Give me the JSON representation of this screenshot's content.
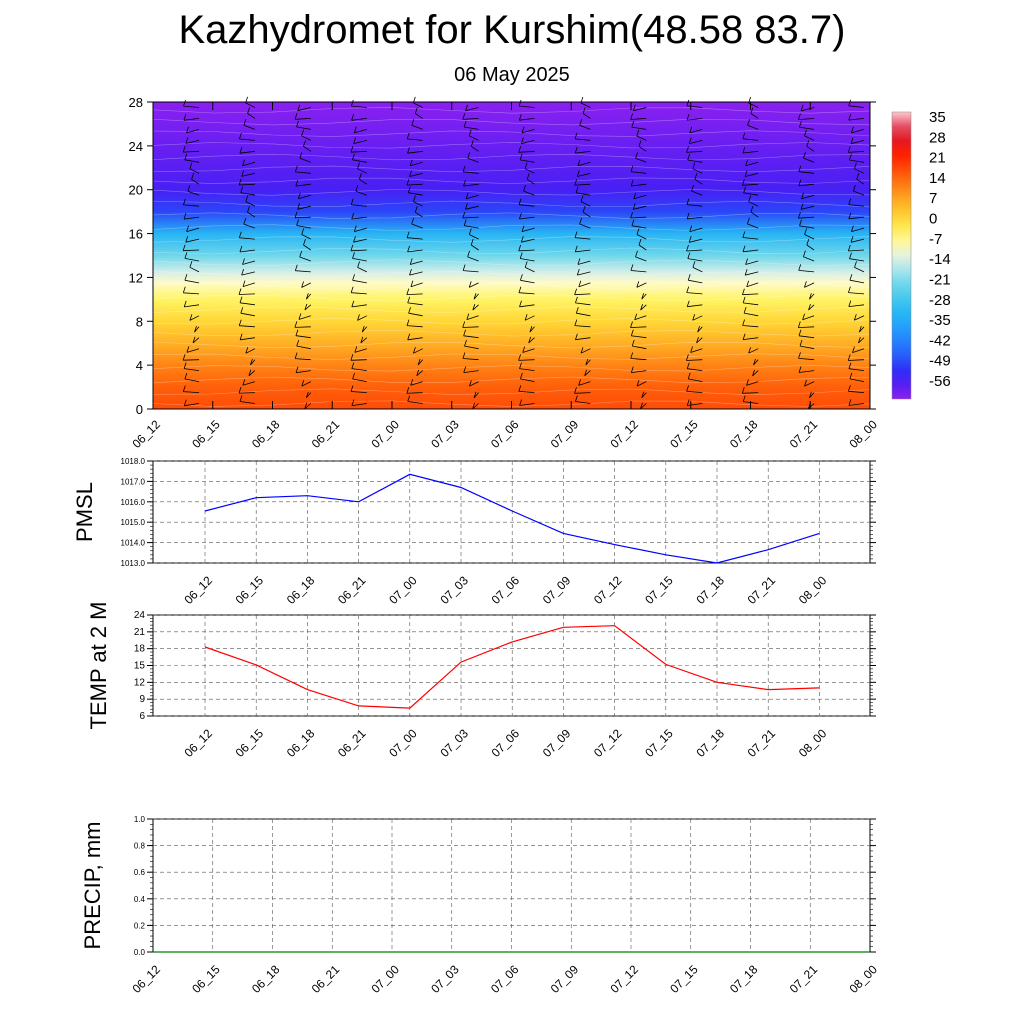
{
  "title": "Kazhydromet for Kurshim(48.58 83.7)",
  "subtitle": "06 May 2025",
  "chart_data": [
    {
      "type": "heatmap",
      "description_of_panel": "vertical cross-section",
      "x_labels": [
        "06_12",
        "06_15",
        "06_18",
        "06_21",
        "07_00",
        "07_03",
        "07_06",
        "07_09",
        "07_12",
        "07_15",
        "07_18",
        "07_21",
        "08_00"
      ],
      "y_ticks": [
        0,
        4,
        8,
        12,
        16,
        20,
        24,
        28
      ],
      "ylim": [
        0,
        28
      ],
      "colorbar_labels": [
        "35",
        "28",
        "21",
        "14",
        "7",
        "0",
        "-7",
        "-14",
        "-21",
        "-28",
        "-35",
        "-42",
        "-49",
        "-56"
      ],
      "value_profile": {
        "height": [
          0,
          2,
          4,
          6,
          8,
          10,
          11.5,
          12.5,
          14,
          16,
          18,
          20,
          24,
          28
        ],
        "value": [
          16,
          14,
          10,
          5,
          0,
          -5,
          -10,
          -14,
          -22,
          -32,
          -48,
          -54,
          -57,
          -60
        ]
      },
      "colors": {
        "warm_max": "#ff1e00",
        "zero": "#fff060",
        "cold_min": "#8a20f0"
      }
    },
    {
      "type": "line",
      "ylabel": "PMSL",
      "x_labels": [
        "06_12",
        "06_15",
        "06_18",
        "06_21",
        "07_00",
        "07_03",
        "07_06",
        "07_09",
        "07_12",
        "07_15",
        "07_18",
        "07_21",
        "08_00"
      ],
      "y_tick_labels": [
        "1013.0",
        "1014.0",
        "1015.0",
        "1016.0",
        "1017.0",
        "1018.0"
      ],
      "ylim": [
        1013.0,
        1018.0
      ],
      "series": [
        {
          "values": [
            1015.55,
            1016.2,
            1016.3,
            1016.0,
            1017.35,
            1016.7,
            1015.55,
            1014.45,
            1013.9,
            1013.4,
            1013.0,
            1013.65,
            1014.45
          ],
          "color": "#0000ff"
        }
      ],
      "grid": true
    },
    {
      "type": "line",
      "ylabel": "TEMP at 2 M",
      "x_labels": [
        "06_12",
        "06_15",
        "06_18",
        "06_21",
        "07_00",
        "07_03",
        "07_06",
        "07_09",
        "07_12",
        "07_15",
        "07_18",
        "07_21",
        "08_00"
      ],
      "y_tick_labels": [
        "6",
        "9",
        "12",
        "15",
        "18",
        "21",
        "24"
      ],
      "ylim": [
        6,
        24
      ],
      "series": [
        {
          "values": [
            18.3,
            15.1,
            10.7,
            7.8,
            7.4,
            15.6,
            19.2,
            21.8,
            22.1,
            15.2,
            12.0,
            10.7,
            11.0
          ],
          "color": "#ff0000"
        }
      ],
      "grid": true
    },
    {
      "type": "line",
      "ylabel": "PRECIP, mm",
      "x_labels": [
        "06_12",
        "06_15",
        "06_18",
        "06_21",
        "07_00",
        "07_03",
        "07_06",
        "07_09",
        "07_12",
        "07_15",
        "07_18",
        "07_21",
        "08_00"
      ],
      "y_tick_labels": [
        "0.0",
        "0.2",
        "0.4",
        "0.6",
        "0.8",
        "1.0"
      ],
      "ylim": [
        0,
        1.0
      ],
      "series": [
        {
          "values": [
            0,
            0,
            0,
            0,
            0,
            0,
            0,
            0,
            0,
            0,
            0,
            0,
            0
          ],
          "color": "#008000"
        }
      ],
      "grid": true
    }
  ]
}
